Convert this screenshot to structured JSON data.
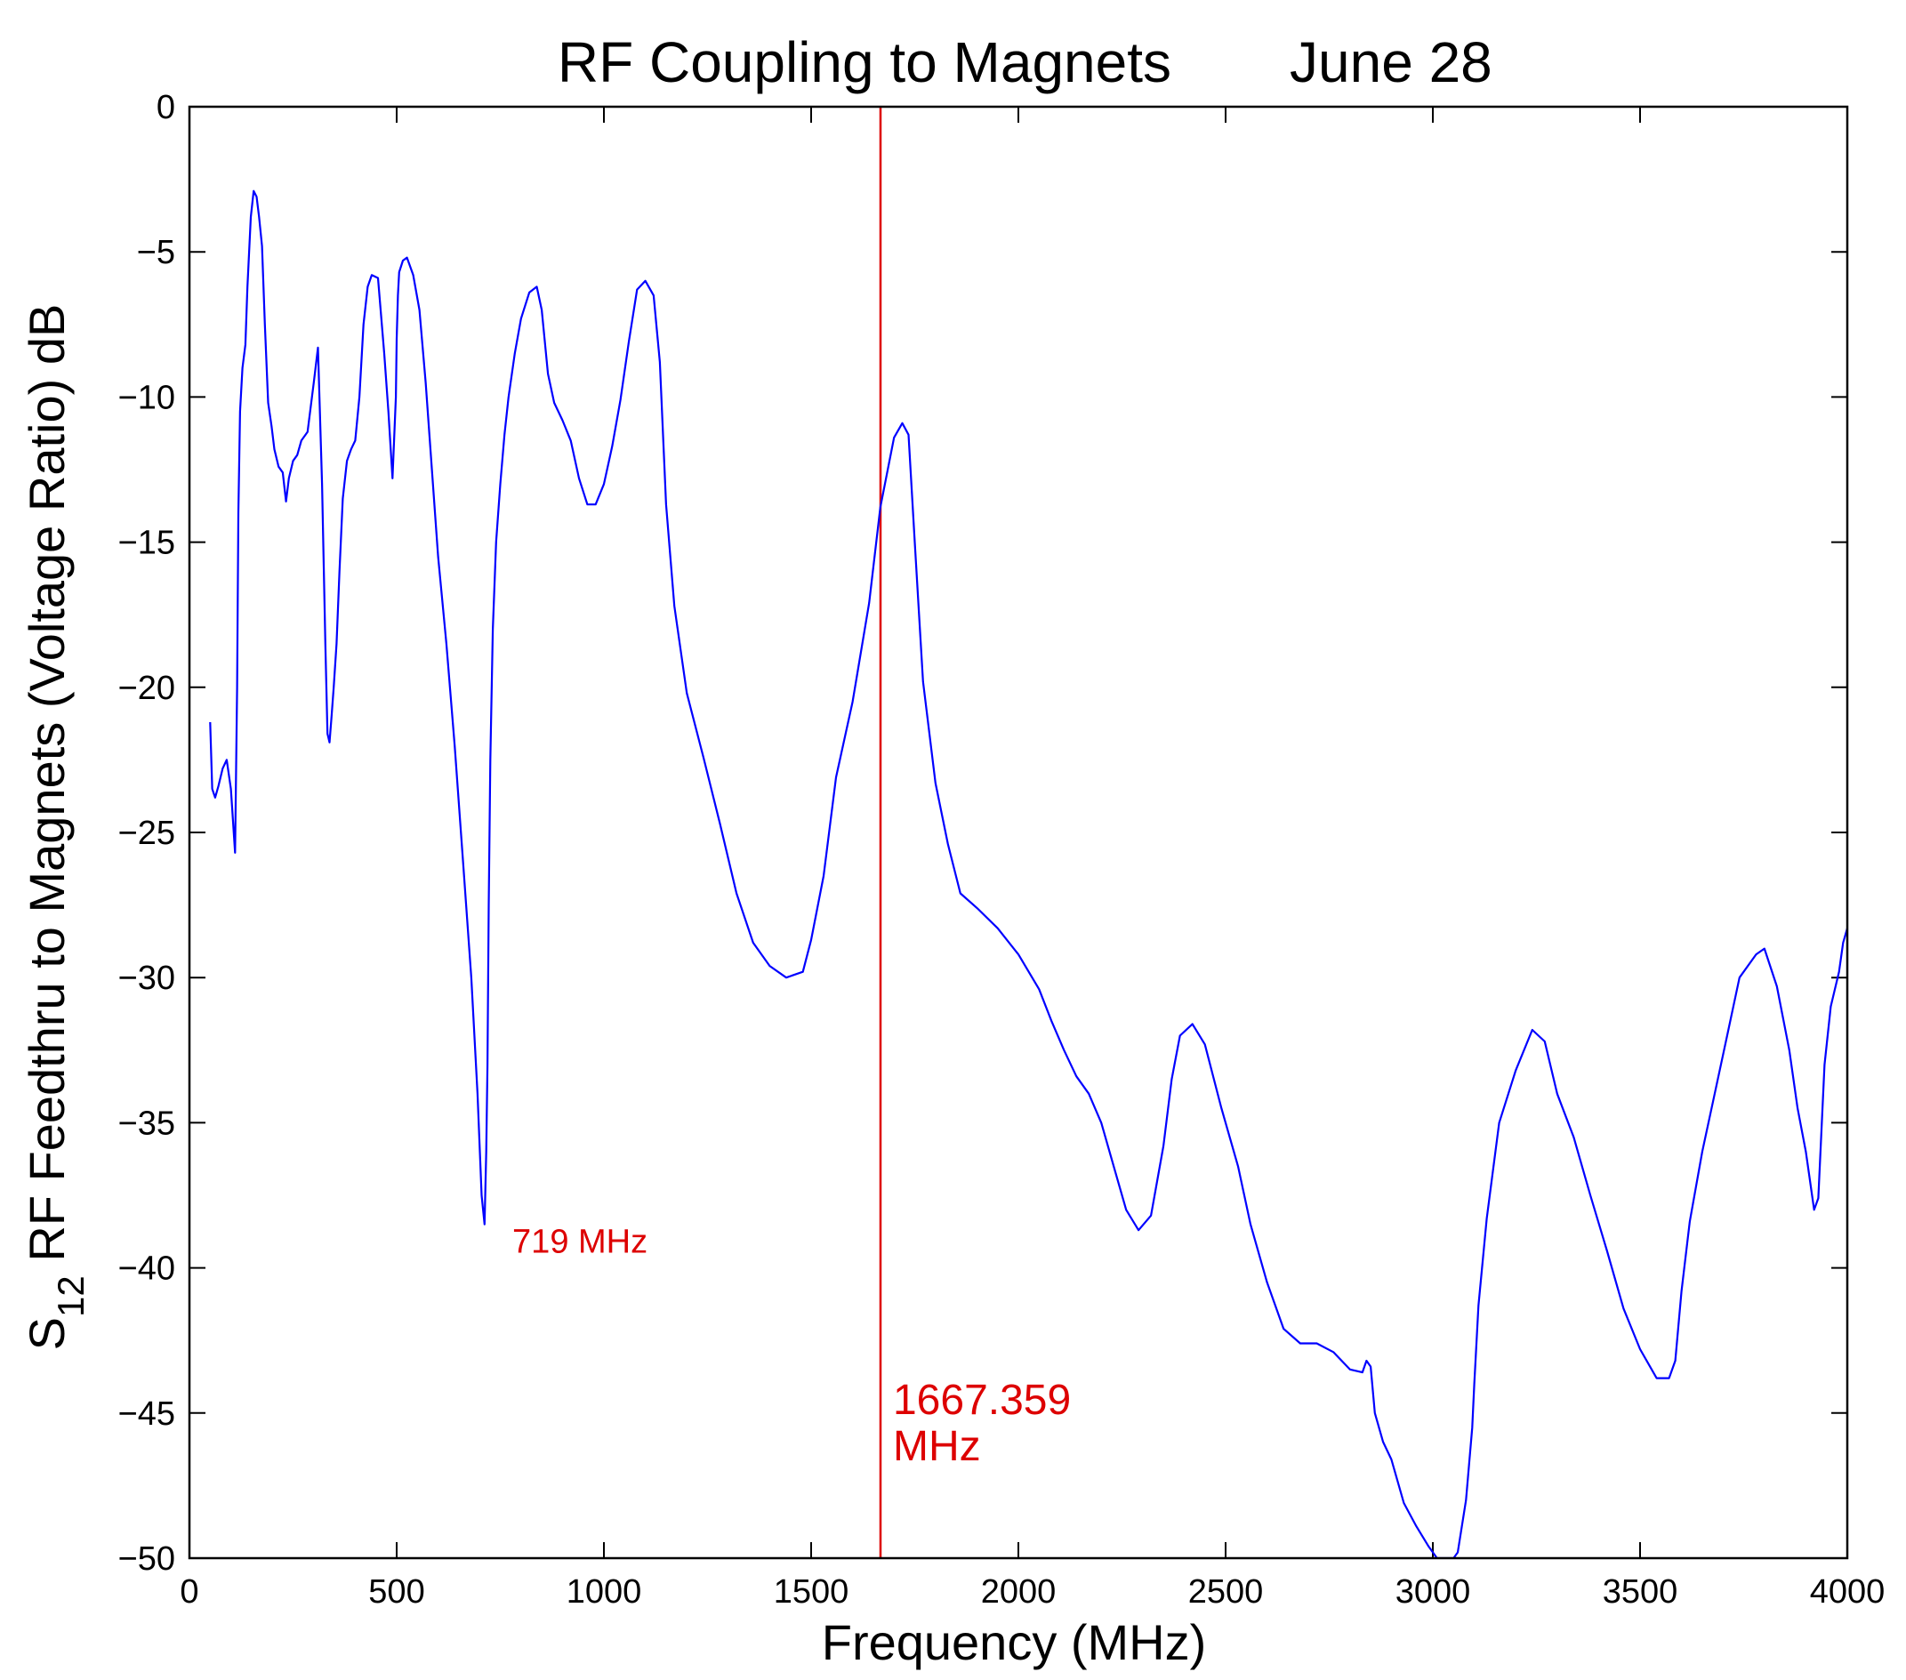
{
  "chart_data": {
    "type": "line",
    "title": "RF Coupling to Magnets",
    "title_date": "June 28",
    "xlabel": "Frequency (MHz)",
    "ylabel": {
      "prefix": "S",
      "subscript": "12",
      "rest": " RF Feedthru to Magnets (Voltage Ratio) dB"
    },
    "xlim": [
      0,
      4000
    ],
    "ylim": [
      -50,
      0
    ],
    "xticks": [
      0,
      500,
      1000,
      1500,
      2000,
      2500,
      3000,
      3500,
      4000
    ],
    "yticks": [
      0,
      -5,
      -10,
      -15,
      -20,
      -25,
      -30,
      -35,
      -40,
      -45,
      -50
    ],
    "grid": false,
    "legend": "none",
    "series_color": "#0000ff",
    "annotation_color": "#dd0000",
    "series": [
      {
        "x": [
          50,
          55,
          62,
          70,
          80,
          90,
          100,
          110,
          115,
          118,
          122,
          128,
          135,
          140,
          148,
          155,
          162,
          168,
          175,
          182,
          190,
          198,
          205,
          215,
          225,
          233,
          240,
          250,
          260,
          270,
          285,
          300,
          310,
          320,
          328,
          333,
          338,
          343,
          348,
          355,
          362,
          370,
          380,
          390,
          400,
          410,
          420,
          430,
          440,
          455,
          470,
          480,
          490,
          498,
          500,
          503,
          506,
          515,
          525,
          540,
          555,
          570,
          585,
          600,
          620,
          640,
          660,
          680,
          695,
          705,
          712,
          716,
          719,
          722,
          726,
          732,
          740,
          750,
          760,
          770,
          785,
          800,
          820,
          838,
          850,
          865,
          880,
          900,
          920,
          940,
          960,
          980,
          1000,
          1020,
          1040,
          1060,
          1080,
          1100,
          1120,
          1135,
          1150,
          1170,
          1200,
          1240,
          1280,
          1320,
          1360,
          1400,
          1440,
          1480,
          1500,
          1530,
          1560,
          1600,
          1640,
          1667,
          1700,
          1720,
          1735,
          1750,
          1770,
          1800,
          1830,
          1860,
          1900,
          1950,
          2000,
          2050,
          2080,
          2110,
          2140,
          2170,
          2200,
          2230,
          2260,
          2290,
          2320,
          2350,
          2370,
          2390,
          2420,
          2450,
          2490,
          2530,
          2560,
          2600,
          2640,
          2680,
          2720,
          2760,
          2800,
          2830,
          2840,
          2850,
          2860,
          2880,
          2900,
          2930,
          2960,
          2990,
          3010,
          3030,
          3040,
          3050,
          3060,
          3080,
          3095,
          3100,
          3110,
          3130,
          3160,
          3200,
          3240,
          3270,
          3300,
          3340,
          3380,
          3420,
          3460,
          3500,
          3540,
          3570,
          3585,
          3600,
          3620,
          3650,
          3680,
          3710,
          3740,
          3780,
          3800,
          3830,
          3860,
          3880,
          3900,
          3920,
          3930,
          3945,
          3960,
          3980,
          3990,
          4000
        ],
        "y": [
          -21.2,
          -23.5,
          -23.8,
          -23.4,
          -22.8,
          -22.5,
          -23.5,
          -25.7,
          -20,
          -14,
          -10.5,
          -9,
          -8.2,
          -6.2,
          -3.8,
          -2.9,
          -3.1,
          -3.8,
          -4.8,
          -7.5,
          -10.2,
          -11,
          -11.8,
          -12.4,
          -12.6,
          -13.6,
          -12.8,
          -12.2,
          -12,
          -11.5,
          -11.2,
          -9.5,
          -8.3,
          -13,
          -18.5,
          -21.6,
          -21.9,
          -21,
          -20,
          -18.5,
          -16,
          -13.5,
          -12.2,
          -11.8,
          -11.5,
          -10,
          -7.5,
          -6.2,
          -5.8,
          -5.9,
          -8.5,
          -10.5,
          -12.8,
          -10,
          -8,
          -6.5,
          -5.7,
          -5.3,
          -5.2,
          -5.8,
          -7,
          -9.5,
          -12.5,
          -15.5,
          -18.5,
          -22,
          -26,
          -30,
          -34,
          -37.5,
          -38.5,
          -36,
          -33,
          -27.5,
          -22.5,
          -18,
          -15,
          -13,
          -11.3,
          -10,
          -8.5,
          -7.3,
          -6.4,
          -6.2,
          -7,
          -9.2,
          -10.2,
          -10.8,
          -11.5,
          -12.8,
          -13.7,
          -13.7,
          -13,
          -11.7,
          -10.1,
          -8.1,
          -6.3,
          -6,
          -6.5,
          -8.8,
          -13.7,
          -17.2,
          -20.2,
          -22.4,
          -24.7,
          -27.1,
          -28.8,
          -29.6,
          -30,
          -29.8,
          -28.7,
          -26.5,
          -23.1,
          -20.5,
          -17.1,
          -13.8,
          -11.4,
          -10.9,
          -11.3,
          -15,
          -19.8,
          -23.3,
          -25.4,
          -27.1,
          -27.6,
          -28.3,
          -29.2,
          -30.4,
          -31.5,
          -32.5,
          -33.4,
          -34,
          -35,
          -36.5,
          -38,
          -38.7,
          -38.2,
          -35.8,
          -33.5,
          -32,
          -31.6,
          -32.3,
          -34.5,
          -36.5,
          -38.5,
          -40.5,
          -42.1,
          -42.6,
          -42.6,
          -42.9,
          -43.5,
          -43.6,
          -43.2,
          -43.4,
          -45,
          -46,
          -46.6,
          -48.1,
          -48.9,
          -49.6,
          -50,
          -50,
          -50,
          -50,
          -49.8,
          -48,
          -45.5,
          -44,
          -41.3,
          -38.3,
          -35,
          -33.2,
          -31.8,
          -32.2,
          -34,
          -35.5,
          -37.5,
          -39.4,
          -41.4,
          -42.8,
          -43.8,
          -43.8,
          -43.2,
          -40.8,
          -38.4,
          -36,
          -34,
          -32,
          -30,
          -29.2,
          -29,
          -30.3,
          -32.5,
          -34.5,
          -36,
          -38,
          -37.6,
          -33,
          -31,
          -29.8,
          -28.8,
          -28.3
        ]
      }
    ],
    "annotations": [
      {
        "label": "719 MHz",
        "x": 719,
        "y": -38.5
      },
      {
        "label": "1667.359",
        "label_line2": "MHz",
        "x": 1667.359
      }
    ]
  }
}
